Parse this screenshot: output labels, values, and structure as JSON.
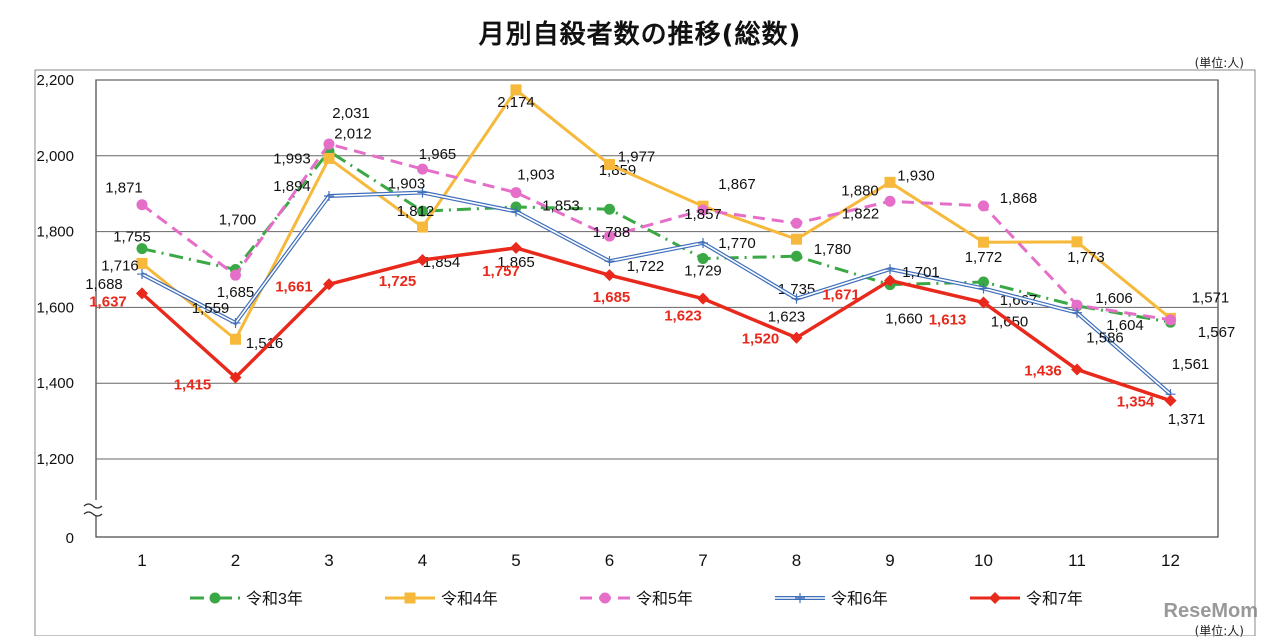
{
  "title": "月別自殺者数の推移(総数)",
  "unit": "(単位:人)",
  "watermark": "ReseMom",
  "chart_data": {
    "type": "line",
    "title": "月別自殺者数の推移(総数)",
    "unit_label": "(単位:人)",
    "categories": [
      "1",
      "2",
      "3",
      "4",
      "5",
      "6",
      "7",
      "8",
      "9",
      "10",
      "11",
      "12"
    ],
    "yticks": [
      "2,200",
      "2,000",
      "1,800",
      "1,600",
      "1,400",
      "1,200",
      "0"
    ],
    "ytick_values": [
      2200,
      2000,
      1800,
      1600,
      1400,
      1200
    ],
    "ylim": [
      1200,
      2200
    ],
    "axis_break": true,
    "grid": true,
    "legend": "bottom",
    "series": [
      {
        "name": "令和3年",
        "color": "#3aa845",
        "style": "dash-dot",
        "marker": "circle",
        "values": [
          1755,
          1700,
          2012,
          1854,
          1865,
          1859,
          1729,
          1735,
          1660,
          1667,
          1604,
          1561
        ]
      },
      {
        "name": "令和4年",
        "color": "#f6b93b",
        "style": "solid",
        "marker": "square",
        "values": [
          1716,
          1516,
          1993,
          1812,
          2174,
          1977,
          1867,
          1780,
          1930,
          1772,
          1773,
          1571
        ]
      },
      {
        "name": "令和5年",
        "color": "#e56fc8",
        "style": "dashed",
        "marker": "circle",
        "values": [
          1871,
          1685,
          2031,
          1965,
          1903,
          1788,
          1857,
          1822,
          1880,
          1868,
          1606,
          1567
        ]
      },
      {
        "name": "令和6年",
        "color": "#3f6fba",
        "style": "double",
        "marker": "plus",
        "values": [
          1688,
          1559,
          1894,
          1903,
          1853,
          1722,
          1770,
          1623,
          1701,
          1650,
          1586,
          1371
        ]
      },
      {
        "name": "令和7年",
        "color": "#e8291c",
        "style": "solid-bold",
        "marker": "diamond",
        "values": [
          1637,
          1415,
          1661,
          1725,
          1757,
          1685,
          1623,
          1520,
          1671,
          1613,
          1436,
          1354
        ]
      }
    ]
  }
}
